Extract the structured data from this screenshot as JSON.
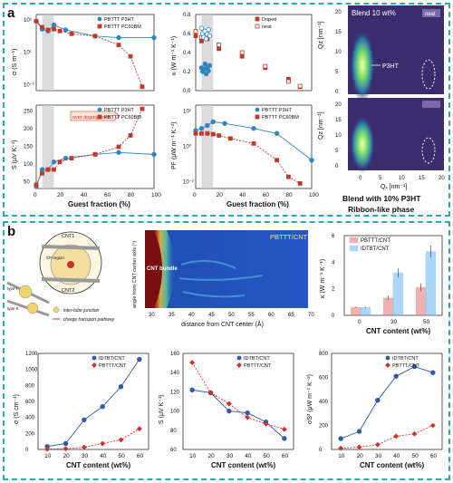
{
  "panel_labels": {
    "a": "a",
    "b": "b"
  },
  "panel_a": {
    "guest_fraction_xlabel": "Guest fraction (%)",
    "gi_title": "Blend 10 wt%",
    "gi_label_neat": "neat",
    "gi_label_p3ht": "P3HT",
    "gi_xlabel": "Qₓ [nm⁻¹]",
    "gi_ylabel": "Qz [nm⁻¹]",
    "gi_xticks": [
      "0",
      "5",
      "10",
      "15",
      "20"
    ],
    "gi_yticks": [
      "20",
      "15",
      "10",
      "5",
      "0"
    ],
    "blend_caption1": "Blend with 10% P3HT",
    "blend_caption2": "Ribbon-like phase"
  },
  "panel_b": {
    "schematic": {
      "cnt1": "CNT1",
      "cnt2": "CNT2",
      "region": "CP region",
      "type1": "type I",
      "type2": "type II",
      "legend1": ": inter-tube junction",
      "legend2": ": charge transport pathway"
    },
    "heatmap": {
      "title": "PBTTT/CNT",
      "cnt_label": "CNT bundle",
      "xlabel": "distance from CNT center (Å)",
      "ylabel": "angle from CNT center axis (°)",
      "xticks": [
        "30",
        "35",
        "40",
        "45",
        "50",
        "55",
        "60",
        "65",
        "70"
      ]
    }
  },
  "chart_data": [
    {
      "id": "a_sigma",
      "type": "line",
      "ylabel": "σ (S m⁻¹)",
      "xlabel": "",
      "yscale": "log",
      "ylim": [
        0.01,
        10000
      ],
      "yticks": [
        "10³",
        "10¹",
        "10⁻¹"
      ],
      "xlim": [
        0,
        100
      ],
      "shade": [
        5,
        15
      ],
      "series": [
        {
          "name": "PBTTT P3HT",
          "color": "#2e86c1",
          "marker": "circle",
          "x": [
            0,
            5,
            10,
            15,
            25,
            50,
            70,
            100
          ],
          "y": [
            3000,
            700,
            500,
            1500,
            600,
            200,
            150,
            150
          ]
        },
        {
          "name": "PBTTT PC60BM",
          "color": "#c0392b",
          "marker": "square",
          "x": [
            0,
            5,
            10,
            15,
            20,
            30,
            50,
            70,
            80,
            90
          ],
          "y": [
            3000,
            1000,
            600,
            700,
            500,
            300,
            200,
            40,
            5,
            0.02
          ]
        }
      ]
    },
    {
      "id": "a_kappa",
      "type": "scatter",
      "ylabel": "κ (W m⁻¹ K⁻¹)",
      "xlabel": "",
      "ylim": [
        0,
        1.0
      ],
      "yticks": [
        "0.0",
        "0.2",
        "0.4",
        "0.6",
        "0.8"
      ],
      "xlim": [
        0,
        100
      ],
      "shade": [
        5,
        15
      ],
      "series": [
        {
          "name": "Doped",
          "color": "#c0392b",
          "marker": "square",
          "filled": true,
          "x": [
            0,
            5,
            10,
            20,
            40,
            60,
            80,
            90
          ],
          "y": [
            0.72,
            0.65,
            0.68,
            0.55,
            0.45,
            0.3,
            0.15,
            0.05
          ]
        },
        {
          "name": "neat",
          "color": "#c0392b",
          "marker": "square",
          "filled": false,
          "x": [
            0,
            5,
            10,
            20,
            40,
            60,
            80,
            90
          ],
          "y": [
            0.78,
            0.7,
            0.72,
            0.6,
            0.5,
            0.32,
            0.12,
            0.06
          ]
        },
        {
          "name": "",
          "color": "#2e86c1",
          "marker": "circle",
          "filled": true,
          "x": [
            5,
            6,
            7,
            8,
            9,
            10,
            11,
            12
          ],
          "y": [
            0.3,
            0.25,
            0.28,
            0.35,
            0.22,
            0.3,
            0.26,
            0.33
          ]
        },
        {
          "name": "",
          "color": "#2e86c1",
          "marker": "circle",
          "filled": false,
          "x": [
            5,
            6,
            7,
            8,
            9,
            10,
            11,
            12
          ],
          "y": [
            0.82,
            0.75,
            0.7,
            0.78,
            0.68,
            0.74,
            0.8,
            0.72
          ]
        }
      ]
    },
    {
      "id": "a_S",
      "type": "line",
      "ylabel": "S (μV K⁻¹)",
      "xlabel": "Guest fraction (%)",
      "ylim": [
        50,
        270
      ],
      "yticks": [
        "250",
        "200",
        "150",
        "100",
        "50"
      ],
      "xticks": [
        "0",
        "20",
        "40",
        "60",
        "80",
        "100"
      ],
      "xlim": [
        0,
        100
      ],
      "shade": [
        5,
        15
      ],
      "annotation": "over doping level",
      "series": [
        {
          "name": "PBTTT P3HT",
          "color": "#2e86c1",
          "marker": "circle",
          "x": [
            0,
            5,
            10,
            15,
            25,
            50,
            70,
            100
          ],
          "y": [
            55,
            100,
            100,
            120,
            130,
            140,
            145,
            140
          ]
        },
        {
          "name": "PBTTT PC60BM",
          "color": "#c0392b",
          "marker": "square",
          "x": [
            0,
            5,
            10,
            15,
            20,
            30,
            50,
            70,
            80,
            90
          ],
          "y": [
            60,
            90,
            100,
            100,
            120,
            130,
            140,
            160,
            190,
            260
          ]
        }
      ]
    },
    {
      "id": "a_PF",
      "type": "line",
      "ylabel": "PF (μW m⁻¹ K⁻²)",
      "xlabel": "Guest fraction (%)",
      "yscale": "log",
      "ylim": [
        0.01,
        1000
      ],
      "yticks": [
        "10²",
        "10⁰",
        "10⁻²"
      ],
      "xticks": [
        "0",
        "20",
        "40",
        "60",
        "80",
        "100"
      ],
      "xlim": [
        0,
        100
      ],
      "shade": [
        5,
        15
      ],
      "series": [
        {
          "name": "PBTTT P3HT",
          "color": "#2e86c1",
          "marker": "circle",
          "x": [
            0,
            5,
            10,
            15,
            25,
            50,
            70,
            100
          ],
          "y": [
            30,
            40,
            60,
            100,
            80,
            40,
            20,
            0.5
          ]
        },
        {
          "name": "PBTTT PC60BM",
          "color": "#c0392b",
          "marker": "square",
          "x": [
            0,
            5,
            10,
            15,
            20,
            30,
            50,
            70,
            80,
            90
          ],
          "y": [
            20,
            20,
            20,
            18,
            15,
            10,
            5,
            0.5,
            0.05,
            0.02
          ]
        }
      ]
    },
    {
      "id": "b_kappa",
      "type": "bar",
      "ylabel": "κ (W m⁻¹ K⁻¹)",
      "xlabel": "CNT content (wt%)",
      "ylim": [
        0,
        6
      ],
      "yticks": [
        "0",
        "2",
        "4",
        "6"
      ],
      "categories": [
        "0",
        "30",
        "50"
      ],
      "series": [
        {
          "name": "PBTTT/CNT",
          "color": "#e57373",
          "values": [
            0.6,
            1.3,
            2.1
          ],
          "err": [
            0.05,
            0.15,
            0.3
          ]
        },
        {
          "name": "IDTBT/CNT",
          "color": "#64b5f6",
          "values": [
            0.6,
            3.2,
            4.8
          ],
          "err": [
            0.05,
            0.35,
            0.45
          ]
        }
      ]
    },
    {
      "id": "b_sigma",
      "type": "line",
      "ylabel": "σ (S cm⁻¹)",
      "xlabel": "CNT content (wt%)",
      "ylim": [
        0,
        1300
      ],
      "yticks": [
        "0",
        "200",
        "400",
        "600",
        "800",
        "1000",
        "1200"
      ],
      "xticks": [
        "10",
        "20",
        "30",
        "40",
        "50",
        "60"
      ],
      "xlim": [
        5,
        65
      ],
      "series": [
        {
          "name": "IDTBT/CNT",
          "color": "#2e5aa8",
          "marker": "circle",
          "x": [
            10,
            20,
            30,
            40,
            50,
            60
          ],
          "y": [
            40,
            80,
            400,
            580,
            850,
            1220
          ]
        },
        {
          "name": "PBTTT/CNT",
          "color": "#d32f2f",
          "marker": "diamond",
          "x": [
            10,
            20,
            30,
            40,
            50,
            60
          ],
          "y": [
            5,
            10,
            30,
            80,
            130,
            280
          ]
        }
      ]
    },
    {
      "id": "b_S",
      "type": "line",
      "ylabel": "S (μV K⁻¹)",
      "xlabel": "CNT content (wt%)",
      "ylim": [
        60,
        165
      ],
      "yticks": [
        "60",
        "80",
        "100",
        "120",
        "140",
        "160"
      ],
      "xticks": [
        "10",
        "20",
        "30",
        "40",
        "50",
        "60"
      ],
      "xlim": [
        5,
        65
      ],
      "series": [
        {
          "name": "IDTBT/CNT",
          "color": "#2e5aa8",
          "marker": "circle",
          "x": [
            10,
            20,
            30,
            40,
            50,
            60
          ],
          "y": [
            125,
            122,
            102,
            100,
            90,
            72
          ]
        },
        {
          "name": "PBTTT/CNT",
          "color": "#d32f2f",
          "marker": "diamond",
          "x": [
            10,
            20,
            30,
            40,
            50,
            60
          ],
          "y": [
            155,
            122,
            110,
            95,
            88,
            82
          ]
        }
      ]
    },
    {
      "id": "b_PF",
      "type": "line",
      "ylabel": "σS² (μW m⁻¹ K⁻²)",
      "xlabel": "CNT content (wt%)",
      "ylim": [
        0,
        800
      ],
      "yticks": [
        "0",
        "200",
        "400",
        "600",
        "800"
      ],
      "xticks": [
        "10",
        "20",
        "30",
        "40",
        "50",
        "60"
      ],
      "xlim": [
        5,
        65
      ],
      "series": [
        {
          "name": "IDTBT/CNT",
          "color": "#2e5aa8",
          "marker": "circle",
          "x": [
            10,
            20,
            30,
            40,
            50,
            60
          ],
          "y": [
            90,
            150,
            410,
            610,
            690,
            640
          ]
        },
        {
          "name": "PBTTT/CNT",
          "color": "#d32f2f",
          "marker": "diamond",
          "x": [
            10,
            20,
            30,
            40,
            50,
            60
          ],
          "y": [
            10,
            20,
            40,
            110,
            130,
            200
          ]
        }
      ]
    }
  ]
}
